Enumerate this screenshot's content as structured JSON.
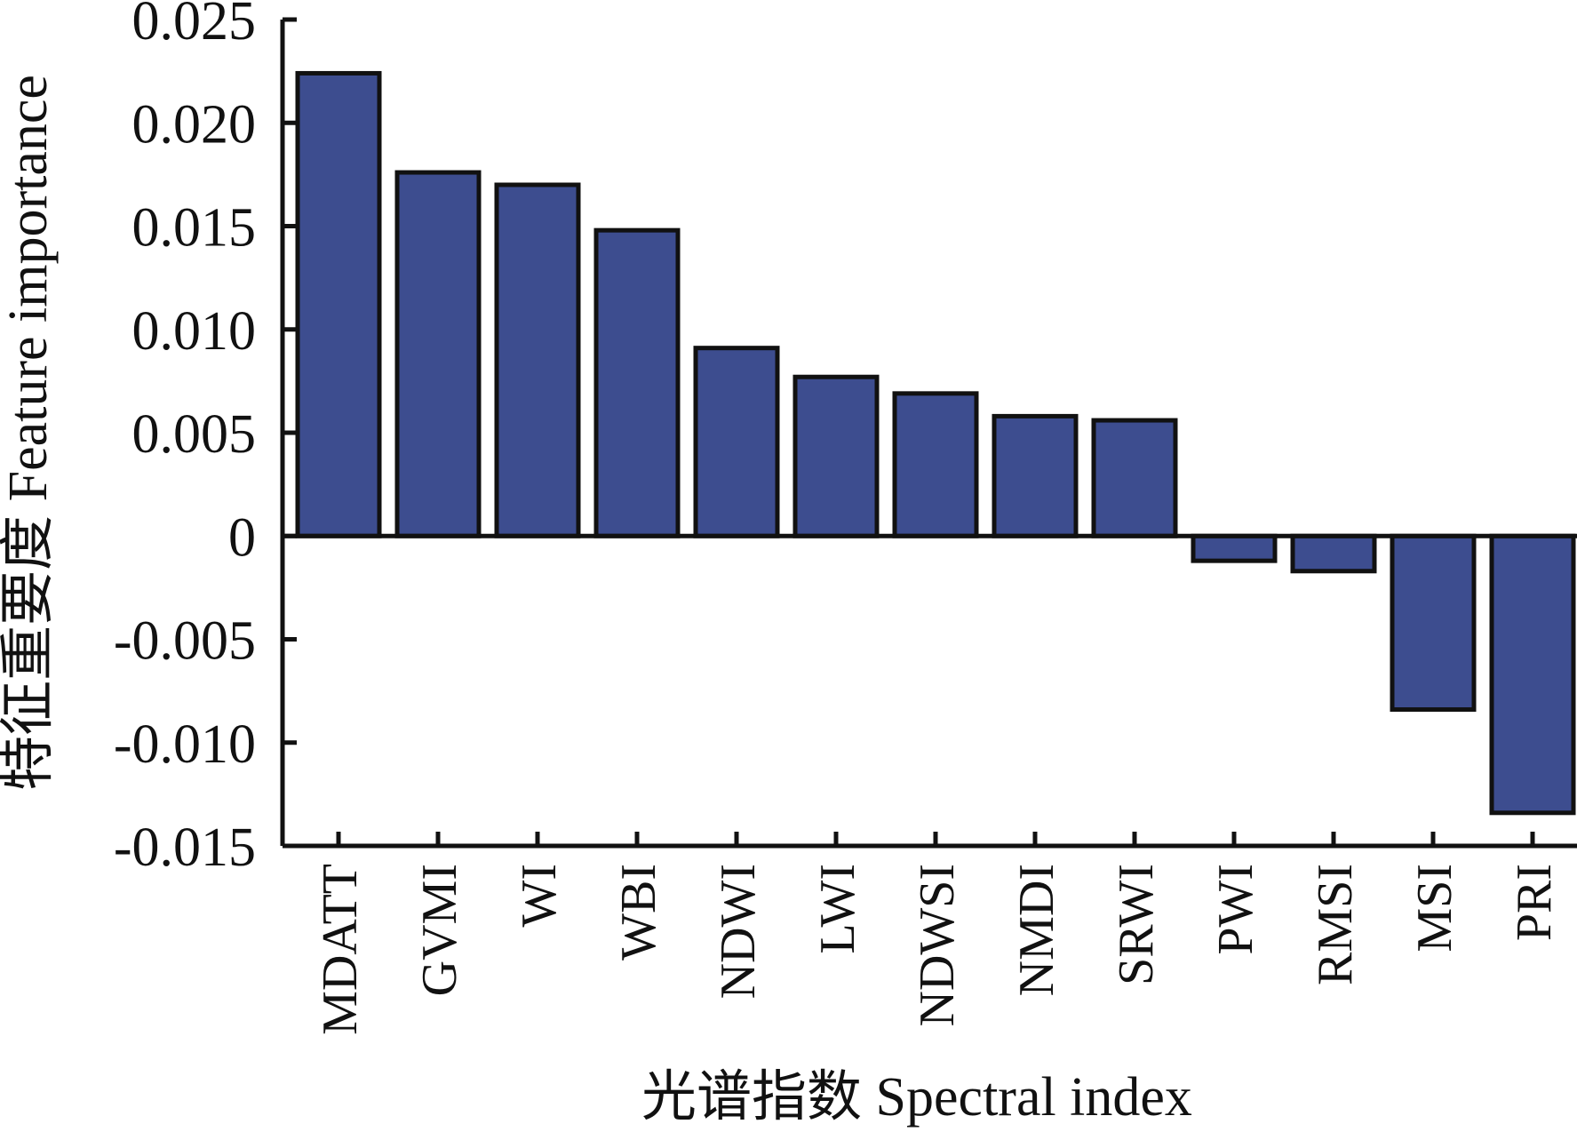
{
  "chart_data": {
    "type": "bar",
    "categories": [
      "MDATT",
      "GVMI",
      "WI",
      "WBI",
      "NDWI",
      "LWI",
      "NDWSI",
      "NMDI",
      "SRWI",
      "PWI",
      "RMSI",
      "MSI",
      "PRI"
    ],
    "values": [
      0.0224,
      0.0176,
      0.017,
      0.0148,
      0.0091,
      0.0077,
      0.0069,
      0.0058,
      0.0056,
      -0.0012,
      -0.0017,
      -0.0084,
      -0.0134
    ],
    "xlabel": "光谱指数 Spectral index",
    "ylabel": "特征重要度 Feature importance",
    "ylim": [
      -0.015,
      0.025
    ],
    "yticks": [
      0.025,
      0.02,
      0.015,
      0.01,
      0.005,
      0,
      -0.005,
      -0.01,
      -0.015
    ],
    "ytick_labels": [
      "0.025",
      "0.020",
      "0.015",
      "0.010",
      "0.005",
      "0",
      "-0.005",
      "-0.010",
      "-0.015"
    ],
    "grid": false,
    "legend": "none",
    "bar_color": "#3d4d8f",
    "edge_color": "#111111"
  }
}
